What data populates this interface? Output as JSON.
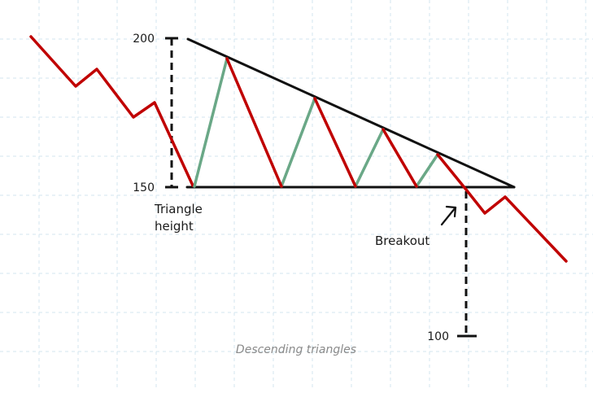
{
  "labels": {
    "level_high": "200",
    "level_base": "150",
    "level_target": "100",
    "height_line1": "Triangle",
    "height_line2": "height",
    "breakout": "Breakout",
    "caption": "Descending triangles"
  },
  "colors": {
    "down_move": "#c00000",
    "up_move": "#6aa887",
    "trendline": "#111111",
    "dashed_guide": "#111111",
    "grid": "#d3e6ef",
    "caption_text": "#8a8a8a"
  }
}
